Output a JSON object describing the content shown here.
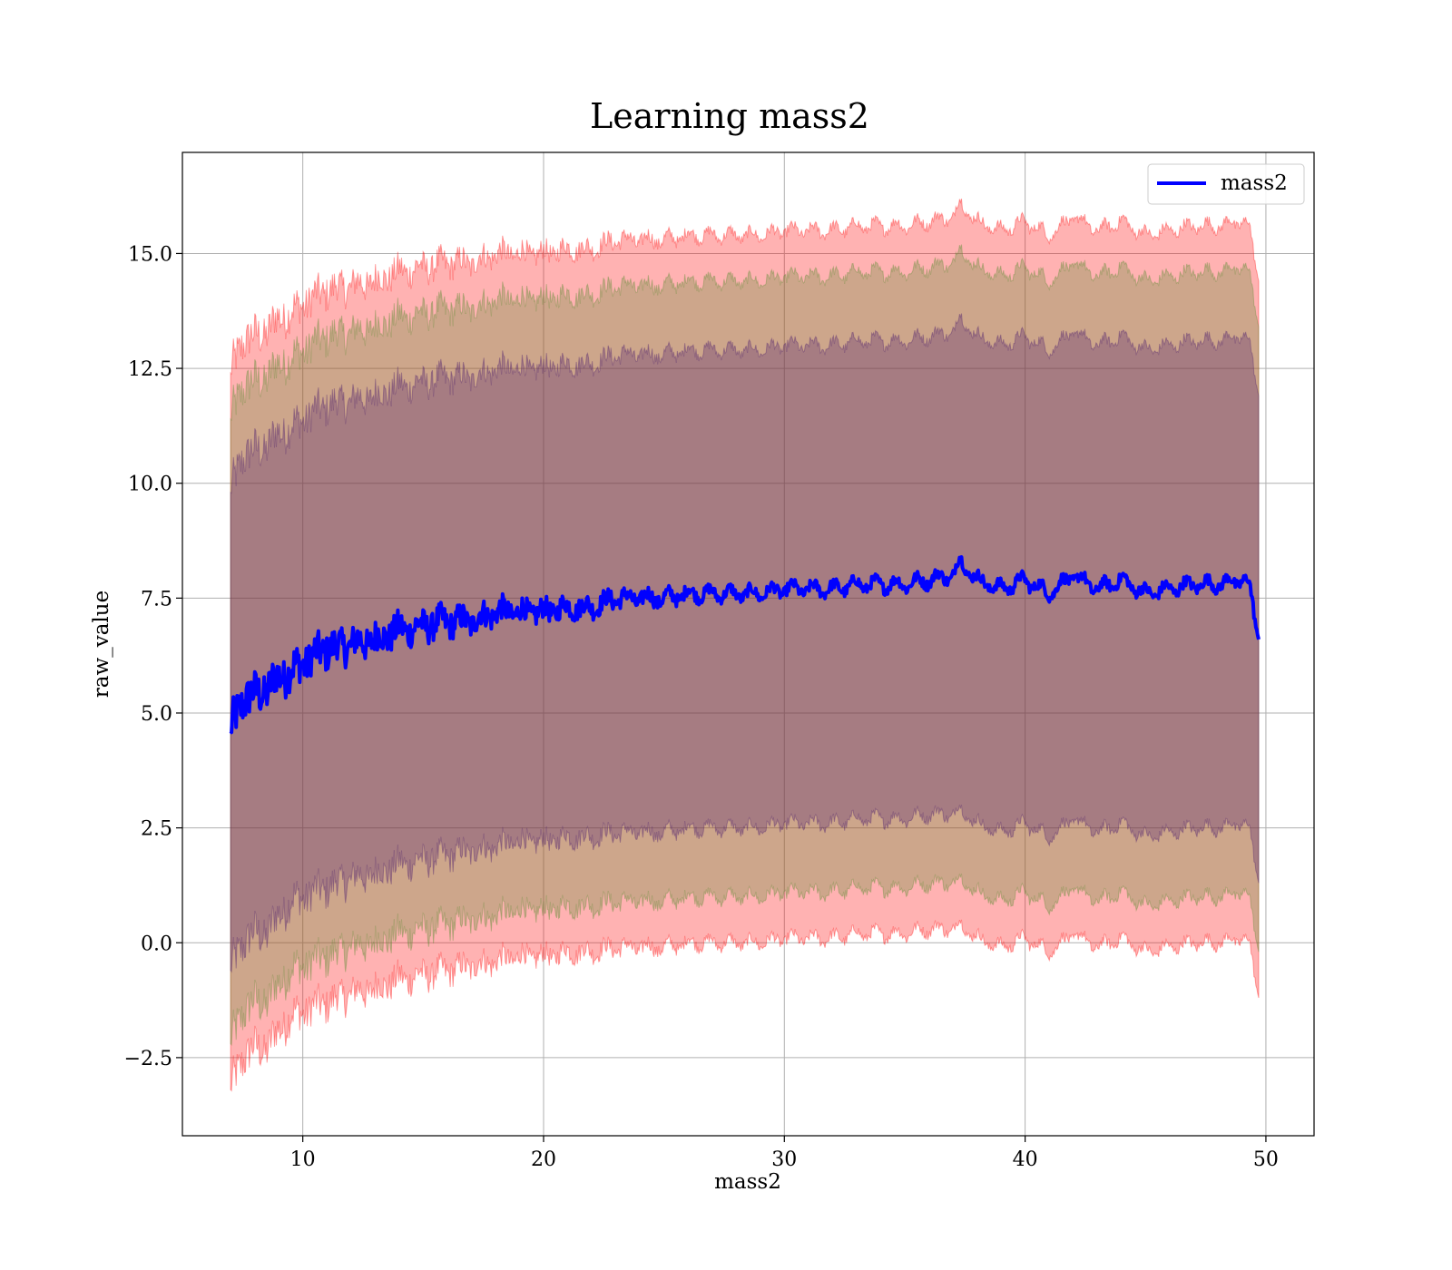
{
  "chart_data": {
    "type": "area",
    "title": "Learning mass2",
    "xlabel": "mass2",
    "ylabel": "raw_value",
    "xlim": [
      5,
      52
    ],
    "ylim": [
      -4.2,
      17.2
    ],
    "xticks": [
      10,
      20,
      30,
      40,
      50
    ],
    "xtick_labels": [
      "10",
      "20",
      "30",
      "40",
      "50"
    ],
    "yticks": [
      -2.5,
      0.0,
      2.5,
      5.0,
      7.5,
      10.0,
      12.5,
      15.0
    ],
    "ytick_labels": [
      "−2.5",
      "0.0",
      "2.5",
      "5.0",
      "7.5",
      "10.0",
      "12.5",
      "15.0"
    ],
    "grid": true,
    "legend": {
      "position": "top-right",
      "entries": [
        "mass2"
      ]
    },
    "colors": {
      "line": "#0000ff",
      "band_outer": "#ff0000",
      "band_middle": "#5a8c32",
      "band_inner": "#4b1c6e",
      "grid": "#b0b0b0"
    },
    "x": [
      7.0,
      7.5,
      8.0,
      8.5,
      9.0,
      9.5,
      10.0,
      11.0,
      12.0,
      13.0,
      14.0,
      15.0,
      16.0,
      17.0,
      18.0,
      19.0,
      20.0,
      21.0,
      22.0,
      23.0,
      24.0,
      25.0,
      26.0,
      27.0,
      28.0,
      29.0,
      30.0,
      31.0,
      32.0,
      33.0,
      34.0,
      35.0,
      36.0,
      37.0,
      37.3,
      38.0,
      39.0,
      40.0,
      41.0,
      42.0,
      43.0,
      44.0,
      45.0,
      46.0,
      47.0,
      48.0,
      49.0,
      49.3,
      49.7
    ],
    "series": [
      {
        "name": "mass2",
        "values": [
          4.6,
          5.3,
          5.4,
          5.5,
          5.8,
          5.9,
          6.1,
          6.4,
          6.5,
          6.6,
          6.8,
          6.9,
          7.0,
          7.0,
          7.2,
          7.2,
          7.2,
          7.3,
          7.3,
          7.5,
          7.5,
          7.5,
          7.6,
          7.6,
          7.6,
          7.6,
          7.7,
          7.7,
          7.7,
          7.8,
          7.8,
          7.8,
          7.9,
          8.0,
          8.3,
          7.9,
          7.7,
          7.9,
          7.6,
          8.0,
          7.7,
          7.9,
          7.6,
          7.7,
          7.8,
          7.8,
          7.9,
          7.8,
          6.6
        ]
      }
    ],
    "bands": [
      {
        "lower": [
          -3.2,
          -2.5,
          -2.3,
          -2.3,
          -1.9,
          -1.6,
          -1.5,
          -1.3,
          -1.1,
          -1.0,
          -0.8,
          -0.7,
          -0.6,
          -0.5,
          -0.4,
          -0.3,
          -0.3,
          -0.2,
          -0.2,
          -0.1,
          -0.1,
          -0.1,
          0.0,
          0.0,
          0.0,
          0.0,
          0.1,
          0.1,
          0.1,
          0.2,
          0.2,
          0.2,
          0.3,
          0.3,
          0.4,
          0.1,
          -0.1,
          0.1,
          -0.2,
          0.2,
          -0.1,
          0.1,
          -0.2,
          -0.1,
          0.0,
          0.0,
          0.1,
          0.0,
          -1.2
        ],
        "upper": [
          12.4,
          13.1,
          13.2,
          13.3,
          13.6,
          13.7,
          13.9,
          14.2,
          14.3,
          14.4,
          14.6,
          14.7,
          14.8,
          14.8,
          15.0,
          15.0,
          15.0,
          15.1,
          15.1,
          15.3,
          15.3,
          15.3,
          15.4,
          15.4,
          15.4,
          15.4,
          15.5,
          15.5,
          15.5,
          15.6,
          15.6,
          15.6,
          15.7,
          15.8,
          16.1,
          15.7,
          15.5,
          15.7,
          15.4,
          15.8,
          15.5,
          15.7,
          15.4,
          15.5,
          15.6,
          15.6,
          15.7,
          15.6,
          14.4
        ]
      },
      {
        "lower": [
          -2.2,
          -1.5,
          -1.3,
          -1.3,
          -0.9,
          -0.6,
          -0.5,
          -0.3,
          -0.1,
          0.0,
          0.2,
          0.3,
          0.4,
          0.5,
          0.6,
          0.7,
          0.7,
          0.8,
          0.8,
          0.9,
          0.9,
          0.9,
          1.0,
          1.0,
          1.0,
          1.0,
          1.1,
          1.1,
          1.1,
          1.2,
          1.2,
          1.2,
          1.3,
          1.3,
          1.4,
          1.1,
          0.9,
          1.1,
          0.8,
          1.2,
          0.9,
          1.1,
          0.8,
          0.9,
          1.0,
          1.0,
          1.1,
          1.0,
          -0.2
        ],
        "upper": [
          11.4,
          12.1,
          12.2,
          12.3,
          12.6,
          12.7,
          12.9,
          13.2,
          13.3,
          13.4,
          13.6,
          13.7,
          13.8,
          13.8,
          14.0,
          14.0,
          14.0,
          14.1,
          14.1,
          14.3,
          14.3,
          14.3,
          14.4,
          14.4,
          14.4,
          14.4,
          14.5,
          14.5,
          14.5,
          14.6,
          14.6,
          14.6,
          14.7,
          14.8,
          15.1,
          14.7,
          14.5,
          14.7,
          14.4,
          14.8,
          14.5,
          14.7,
          14.4,
          14.5,
          14.6,
          14.6,
          14.7,
          14.6,
          13.4
        ]
      },
      {
        "lower": [
          -0.6,
          0.0,
          0.2,
          0.2,
          0.6,
          0.9,
          1.0,
          1.2,
          1.4,
          1.5,
          1.7,
          1.8,
          1.9,
          2.0,
          2.1,
          2.2,
          2.2,
          2.3,
          2.3,
          2.4,
          2.4,
          2.4,
          2.5,
          2.5,
          2.5,
          2.5,
          2.6,
          2.6,
          2.6,
          2.7,
          2.7,
          2.7,
          2.8,
          2.8,
          2.9,
          2.6,
          2.4,
          2.6,
          2.3,
          2.7,
          2.4,
          2.6,
          2.3,
          2.4,
          2.5,
          2.5,
          2.6,
          2.5,
          1.3
        ],
        "upper": [
          9.8,
          10.6,
          10.7,
          10.8,
          11.1,
          11.2,
          11.4,
          11.7,
          11.8,
          11.9,
          12.1,
          12.2,
          12.3,
          12.3,
          12.5,
          12.5,
          12.5,
          12.6,
          12.6,
          12.8,
          12.8,
          12.8,
          12.9,
          12.9,
          12.9,
          12.9,
          13.0,
          13.0,
          13.0,
          13.1,
          13.1,
          13.1,
          13.2,
          13.3,
          13.6,
          13.2,
          13.0,
          13.2,
          12.9,
          13.3,
          13.0,
          13.2,
          12.9,
          13.0,
          13.1,
          13.1,
          13.2,
          13.1,
          11.9
        ]
      }
    ]
  }
}
